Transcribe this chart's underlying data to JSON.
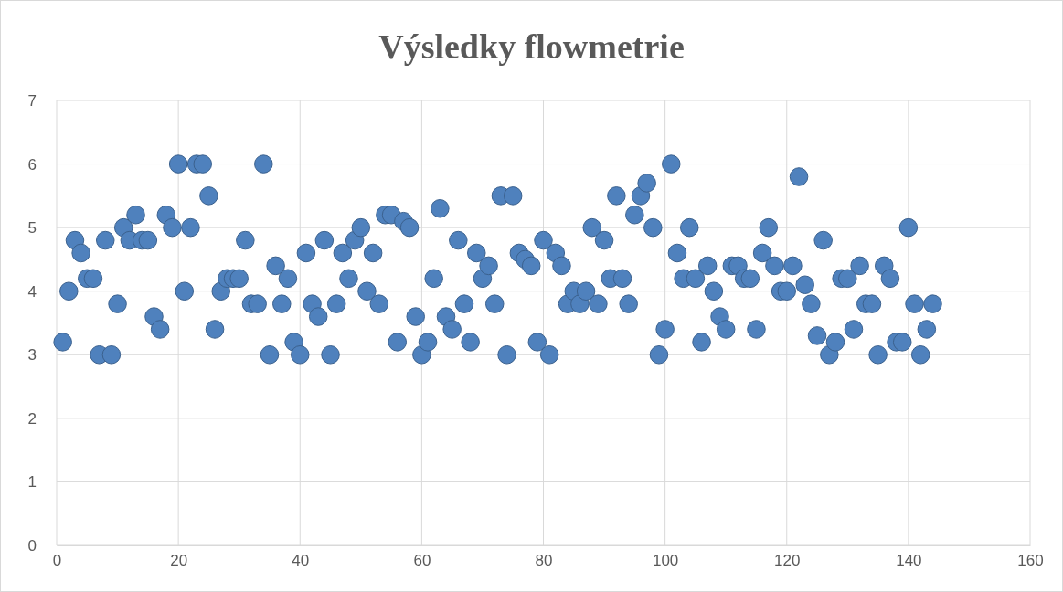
{
  "chart_data": {
    "type": "scatter",
    "title": "Výsledky flowmetrie",
    "x": [
      1,
      2,
      3,
      4,
      5,
      6,
      7,
      8,
      9,
      10,
      11,
      12,
      13,
      14,
      15,
      16,
      17,
      18,
      19,
      20,
      21,
      22,
      23,
      24,
      25,
      26,
      27,
      28,
      29,
      30,
      31,
      32,
      33,
      34,
      35,
      36,
      37,
      38,
      39,
      40,
      41,
      42,
      43,
      44,
      45,
      46,
      47,
      48,
      49,
      50,
      51,
      52,
      53,
      54,
      55,
      56,
      57,
      58,
      59,
      60,
      61,
      62,
      63,
      64,
      65,
      66,
      67,
      68,
      69,
      70,
      71,
      72,
      73,
      74,
      75,
      76,
      77,
      78,
      79,
      80,
      81,
      82,
      83,
      84,
      85,
      86,
      87,
      88,
      89,
      90,
      91,
      92,
      93,
      94,
      95,
      96,
      97,
      98,
      99,
      100,
      101,
      102,
      103,
      104,
      105,
      106,
      107,
      108,
      109,
      110,
      111,
      112,
      113,
      114,
      115,
      116,
      117,
      118,
      119,
      120,
      121,
      122,
      123,
      124,
      125,
      126,
      127,
      128,
      129,
      130,
      131,
      132,
      133,
      134,
      135,
      136,
      137,
      138,
      139,
      140,
      141,
      142,
      143,
      144
    ],
    "series": [
      {
        "color": "#4f81bd",
        "values": [
          3.2,
          4.0,
          4.8,
          4.6,
          4.2,
          4.2,
          3.0,
          4.8,
          3.0,
          3.8,
          5.0,
          4.8,
          5.2,
          4.8,
          4.8,
          3.6,
          3.4,
          5.2,
          5.0,
          6.0,
          4.0,
          5.0,
          6.0,
          6.0,
          5.5,
          3.4,
          4.0,
          4.2,
          4.2,
          4.2,
          4.8,
          3.8,
          3.8,
          6.0,
          3.0,
          4.4,
          3.8,
          4.2,
          3.2,
          3.0,
          4.6,
          3.8,
          3.6,
          4.8,
          3.0,
          3.8,
          4.6,
          4.2,
          4.8,
          5.0,
          4.0,
          4.6,
          3.8,
          5.2,
          5.2,
          3.2,
          5.1,
          5.0,
          3.6,
          3.0,
          3.2,
          4.2,
          5.3,
          3.6,
          3.4,
          4.8,
          3.8,
          3.2,
          4.6,
          4.2,
          4.4,
          3.8,
          5.5,
          3.0,
          5.5,
          4.6,
          4.5,
          4.4,
          3.2,
          4.8,
          3.0,
          4.6,
          4.4,
          3.8,
          4.0,
          3.8,
          4.0,
          5.0,
          3.8,
          4.8,
          4.2,
          5.5,
          4.2,
          3.8,
          5.2,
          5.5,
          5.7,
          5.0,
          3.0,
          3.4,
          6.0,
          4.6,
          4.2,
          5.0,
          4.2,
          3.2,
          4.4,
          4.0,
          3.6,
          3.4,
          4.4,
          4.4,
          4.2,
          4.2,
          3.4,
          4.6,
          5.0,
          4.4,
          4.0,
          4.0,
          4.4,
          5.8,
          4.1,
          3.8,
          3.3,
          4.8,
          3.0,
          3.2,
          4.2,
          4.2,
          3.4,
          4.4,
          3.8,
          3.8,
          3.0,
          4.4,
          4.2,
          3.2,
          3.2,
          5.0,
          3.8,
          3.0,
          3.4,
          3.8
        ]
      }
    ],
    "xlim": [
      0,
      160
    ],
    "xticks": [
      0,
      20,
      40,
      60,
      80,
      100,
      120,
      140,
      160
    ],
    "ylim": [
      0,
      7
    ],
    "yticks": [
      0,
      1,
      2,
      3,
      4,
      5,
      6,
      7
    ],
    "grid": true,
    "marker": "circle"
  }
}
